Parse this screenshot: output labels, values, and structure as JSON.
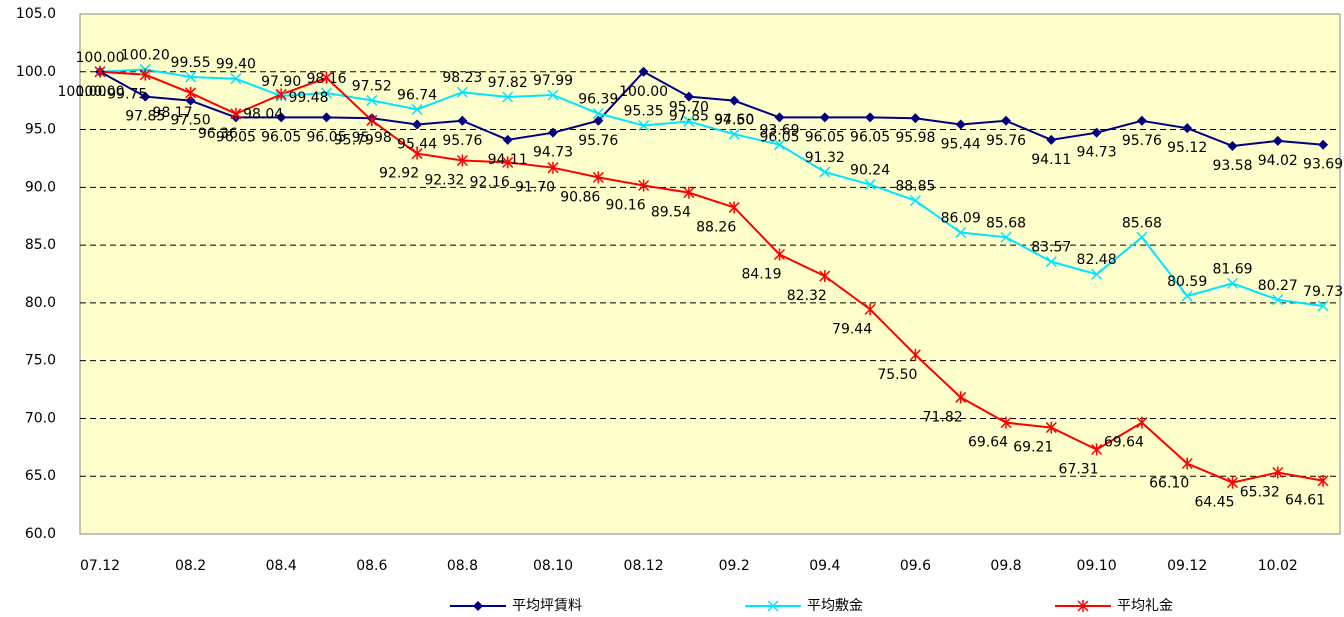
{
  "chart_data": {
    "type": "line",
    "categories": [
      "07.12",
      null,
      "08.2",
      null,
      "08.4",
      null,
      "08.6",
      null,
      "08.8",
      null,
      "08.10",
      null,
      "08.12",
      null,
      "09.2",
      null,
      "09.4",
      null,
      "09.6",
      null,
      "09.8",
      null,
      "09.10",
      null,
      "09.12",
      null,
      "10.02",
      null
    ],
    "series": [
      {
        "name": "平均坪賃料",
        "color": "#000080",
        "marker": "diamond",
        "values": [
          100.0,
          97.85,
          97.5,
          96.05,
          96.05,
          96.05,
          95.98,
          95.44,
          95.76,
          94.11,
          94.73,
          95.76,
          100.0,
          97.85,
          97.5,
          96.05,
          96.05,
          96.05,
          95.98,
          95.44,
          95.76,
          94.11,
          94.73,
          95.76,
          95.12,
          93.58,
          94.02,
          93.69
        ],
        "value_labels": [
          "100.00",
          "97.85",
          "97.50",
          "96.05",
          "96.05",
          "96.05",
          "95.98",
          "95.44",
          "95.76",
          "94.11",
          "94.73",
          "95.76",
          "100.00",
          "97.85",
          "97.50",
          "96.05",
          "96.05",
          "96.05",
          "95.98",
          "95.44",
          "95.76",
          "94.11",
          "94.73",
          "95.76",
          "95.12",
          "93.58",
          "94.02",
          "93.69"
        ]
      },
      {
        "name": "平均敷金",
        "color": "#00e5ff",
        "marker": "x",
        "values": [
          100.0,
          100.2,
          99.55,
          99.4,
          97.9,
          98.16,
          97.52,
          96.74,
          98.23,
          97.82,
          97.99,
          96.39,
          95.35,
          95.7,
          94.6,
          93.69,
          91.32,
          90.24,
          88.85,
          86.09,
          85.68,
          83.57,
          82.48,
          85.68,
          80.59,
          81.69,
          80.27,
          79.73
        ],
        "value_labels": [
          "100.00",
          "100.20",
          "99.55",
          "99.40",
          "97.90",
          "98.16",
          "97.52",
          "96.74",
          "98.23",
          "97.82",
          "97.99",
          "96.39",
          "95.35",
          "95.70",
          "94.60",
          "93.69",
          "91.32",
          "90.24",
          "88.85",
          "86.09",
          "85.68",
          "83.57",
          "82.48",
          "85.68",
          "80.59",
          "81.69",
          "80.27",
          "79.73"
        ]
      },
      {
        "name": "平均礼金",
        "color": "#ff0000",
        "marker": "star",
        "values": [
          100.0,
          99.75,
          98.17,
          96.36,
          98.04,
          99.48,
          95.79,
          92.92,
          92.32,
          92.16,
          91.7,
          90.86,
          90.16,
          89.54,
          88.26,
          84.19,
          82.32,
          79.44,
          75.5,
          71.82,
          69.64,
          69.21,
          67.31,
          69.64,
          66.1,
          64.45,
          65.32,
          64.61
        ],
        "value_labels": [
          "100.00",
          "99.75",
          "98.17",
          "96.36",
          "98.04",
          "99.48",
          "95.79",
          "92.92",
          "92.32",
          "92.16",
          "91.70",
          "90.86",
          "90.16",
          "89.54",
          "88.26",
          "84.19",
          "82.32",
          "79.44",
          "75.50",
          "71.82",
          "69.64",
          "69.21",
          "67.31",
          "69.64",
          "66.10",
          "64.45",
          "65.32",
          "64.61"
        ]
      }
    ],
    "ylim": [
      60,
      105
    ],
    "yticks": [
      {
        "value": 60,
        "label": "60.0"
      },
      {
        "value": 65,
        "label": "65.0"
      },
      {
        "value": 70,
        "label": "70.0"
      },
      {
        "value": 75,
        "label": "75.0"
      },
      {
        "value": 80,
        "label": "80.0"
      },
      {
        "value": 85,
        "label": "85.0"
      },
      {
        "value": 90,
        "label": "90.0"
      },
      {
        "value": 95,
        "label": "95.0"
      },
      {
        "value": 100,
        "label": "100.0"
      },
      {
        "value": 105,
        "label": "105.0"
      }
    ],
    "grid": true,
    "legend": "bottom"
  }
}
